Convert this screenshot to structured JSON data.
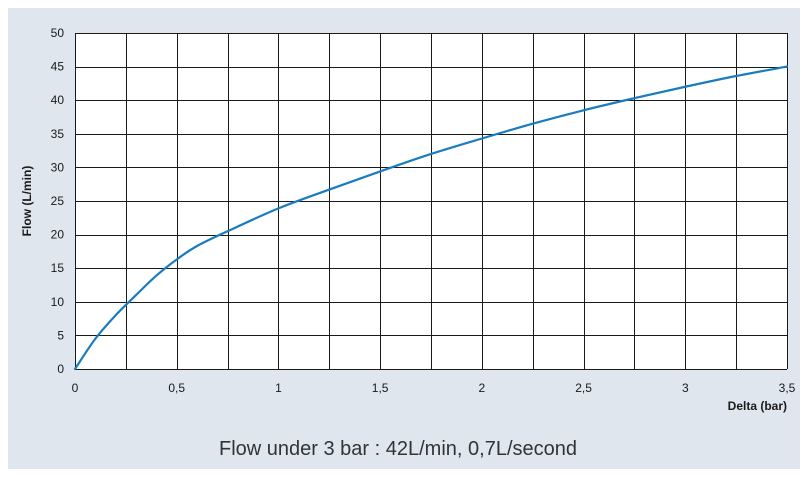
{
  "caption": "Flow under 3 bar : 42L/min, 0,7L/second",
  "colors": {
    "background": "#dfe6ee",
    "plot_area": "#ffffff",
    "grid": "#1a1a1a",
    "series": "#1a7cc0"
  },
  "chart_data": {
    "type": "line",
    "xlabel": "Delta (bar)",
    "ylabel": "Flow (L/min)",
    "xlim": [
      0,
      3.5
    ],
    "ylim": [
      0,
      50
    ],
    "x_ticks": [
      0,
      0.5,
      1,
      1.5,
      2,
      2.5,
      3,
      3.5
    ],
    "x_tick_labels": [
      "0",
      "0,5",
      "1",
      "1,5",
      "2",
      "2,5",
      "3",
      "3,5"
    ],
    "y_ticks": [
      0,
      5,
      10,
      15,
      20,
      25,
      30,
      35,
      40,
      45,
      50
    ],
    "y_tick_labels": [
      "0",
      "5",
      "10",
      "15",
      "20",
      "25",
      "30",
      "35",
      "40",
      "45",
      "50"
    ],
    "x_gridlines": [
      0,
      0.25,
      0.5,
      0.75,
      1,
      1.25,
      1.5,
      1.75,
      2,
      2.25,
      2.5,
      2.75,
      3,
      3.25,
      3.5
    ],
    "y_gridlines": [
      0,
      5,
      10,
      15,
      20,
      25,
      30,
      35,
      40,
      45,
      50
    ],
    "grid": true,
    "legend": false,
    "series": [
      {
        "x": [
          0,
          0.1,
          0.2,
          0.3,
          0.4,
          0.5,
          0.6,
          0.75,
          1.0,
          1.25,
          1.5,
          1.75,
          2.0,
          2.25,
          2.5,
          2.75,
          3.0,
          3.25,
          3.5
        ],
        "y": [
          0,
          4.5,
          8.0,
          11.0,
          13.9,
          16.3,
          18.3,
          20.5,
          23.9,
          26.7,
          29.4,
          32.0,
          34.3,
          36.5,
          38.5,
          40.3,
          42.0,
          43.6,
          45.0
        ]
      }
    ]
  }
}
